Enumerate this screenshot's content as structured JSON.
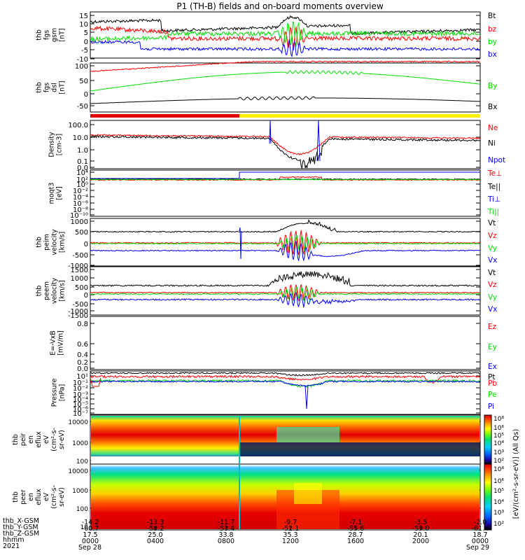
{
  "title": "P1 (TH-B) fields and on-board moments overview",
  "colors": {
    "black": "#000000",
    "red": "#ff0000",
    "green": "#00e000",
    "blue": "#0000ff"
  },
  "chart_data": [
    {
      "type": "line",
      "ylabel": [
        "thb",
        "fgs",
        "gsm",
        "[nT]"
      ],
      "yticks": [
        "15",
        "10",
        "5",
        "0",
        "-5",
        "-10"
      ],
      "ylim": [
        -10,
        15
      ],
      "legend": [
        {
          "name": "Bt",
          "color": "black"
        },
        {
          "name": "bz",
          "color": "red"
        },
        {
          "name": "by",
          "color": "green"
        },
        {
          "name": "bx",
          "color": "blue"
        }
      ]
    },
    {
      "type": "line",
      "ylabel": [
        "thb",
        "fgs",
        "dsl",
        "[nT]"
      ],
      "yticks": [
        "100",
        "50",
        "0",
        "-50"
      ],
      "ylim": [
        -75,
        100
      ],
      "legend": [
        {
          "name": "By",
          "color": "green"
        },
        {
          "name": "Bx",
          "color": "black"
        }
      ]
    },
    {
      "type": "line",
      "ylabel": [
        "Density",
        "[cm-3]"
      ],
      "yticks": [
        "100.0",
        "10.0",
        "1.0",
        "0.1",
        "0.0"
      ],
      "ylim": [
        0.01,
        100
      ],
      "legend": [
        {
          "name": "Ne",
          "color": "red"
        },
        {
          "name": "Ni",
          "color": "black"
        },
        {
          "name": "Npot",
          "color": "blue"
        }
      ]
    },
    {
      "type": "line",
      "ylabel": [
        "moqt3",
        "[eV]"
      ],
      "yticks": [
        "10⁴",
        "10²",
        "10⁰",
        "10⁻²",
        "10⁻⁴",
        "10⁻⁶",
        "10⁻⁸",
        "10⁻¹⁰"
      ],
      "legend": [
        {
          "name": "Te⊥",
          "color": "red"
        },
        {
          "name": "Te||",
          "color": "black"
        },
        {
          "name": "Ti⊥",
          "color": "blue"
        },
        {
          "name": "Ti||",
          "color": "green"
        }
      ]
    },
    {
      "type": "line",
      "ylabel": [
        "thb",
        "peim",
        "velocity",
        "[km/s]"
      ],
      "yticks": [
        "1000",
        "500",
        "0",
        "-500",
        "-1000"
      ],
      "ylim": [
        -1000,
        1000
      ],
      "legend": [
        {
          "name": "Vt",
          "color": "black"
        },
        {
          "name": "Vz",
          "color": "red"
        },
        {
          "name": "Vy",
          "color": "green"
        },
        {
          "name": "Vx",
          "color": "blue"
        }
      ]
    },
    {
      "type": "line",
      "ylabel": [
        "thb",
        "peem",
        "velocity",
        "[km/s]"
      ],
      "yticks": [
        "1500",
        "1000",
        "500",
        "0",
        "-500",
        "-1000",
        "-1500"
      ],
      "ylim": [
        -1500,
        1500
      ],
      "legend": [
        {
          "name": "Vt",
          "color": "black"
        },
        {
          "name": "Vz",
          "color": "red"
        },
        {
          "name": "Vy",
          "color": "green"
        },
        {
          "name": "Vx",
          "color": "blue"
        }
      ]
    },
    {
      "type": "line",
      "ylabel": [
        "E=-VxB",
        "[mV/m]"
      ],
      "yticks": [
        "0.8",
        "0.6",
        "0.4",
        "0.2",
        "0.0"
      ],
      "legend": [
        {
          "name": "Ez",
          "color": "red"
        },
        {
          "name": "Ey",
          "color": "green"
        },
        {
          "name": "Ex",
          "color": "blue"
        }
      ]
    },
    {
      "type": "line",
      "ylabel": [
        "Pressure",
        "[nPa]"
      ],
      "yticks": [
        "10¹",
        "10⁻¹",
        "10⁻²",
        "10⁻³",
        "10⁻⁴",
        "10⁻⁵",
        "10⁻⁶",
        "10⁻⁷"
      ],
      "legend": [
        {
          "name": "Pt",
          "color": "black"
        },
        {
          "name": "Pb",
          "color": "red"
        },
        {
          "name": "Pe",
          "color": "green"
        },
        {
          "name": "Pi",
          "color": "blue"
        }
      ]
    },
    {
      "type": "heatmap",
      "ylabel": [
        "thb",
        "peir",
        "en",
        "eflux",
        "eV",
        "(cm²-s-",
        "sr-eV)"
      ],
      "yticks": [
        "10000",
        "1000",
        "100",
        "10"
      ]
    },
    {
      "type": "heatmap",
      "ylabel": [
        "thb",
        "peer",
        "en",
        "eflux",
        "eV",
        "(cm²-s-",
        "sr-eV)"
      ],
      "yticks": [
        "10000",
        "1000",
        "100",
        "10"
      ]
    }
  ],
  "colorbar": {
    "label": "[eV/(cm²-s-sr-eV)] (All Qs)",
    "upper_ticks": [
      "10⁸",
      "10⁶",
      "10⁵",
      "10⁴",
      "10³",
      "10²"
    ],
    "lower_ticks": [
      "10⁸",
      "10⁶",
      "10⁵",
      "10⁴",
      "10³",
      "10²"
    ]
  },
  "xaxis": {
    "row_labels": [
      "thb_X-GSM",
      "thb_Y-GSM",
      "thb_Z-GSM",
      "hhmm",
      "2021"
    ],
    "ticks": [
      {
        "x": "-14.2",
        "y": "-60.7",
        "z": "17.5",
        "t": "0000",
        "d": "Sep 28"
      },
      {
        "x": "-13.3",
        "y": "-58.2",
        "z": "25.0",
        "t": "0400",
        "d": ""
      },
      {
        "x": "-11.7",
        "y": "-53.4",
        "z": "33.8",
        "t": "0800",
        "d": ""
      },
      {
        "x": "-9.7",
        "y": "-52.1",
        "z": "35.3",
        "t": "1200",
        "d": ""
      },
      {
        "x": "-7.1",
        "y": "-55.6",
        "z": "28.7",
        "t": "1600",
        "d": ""
      },
      {
        "x": "-3.5",
        "y": "-59.0",
        "z": "20.1",
        "t": "2000",
        "d": ""
      },
      {
        "x": "-2.0",
        "y": "-61.4",
        "z": "18.7",
        "t": "0000",
        "d": "Sep 29"
      }
    ]
  }
}
